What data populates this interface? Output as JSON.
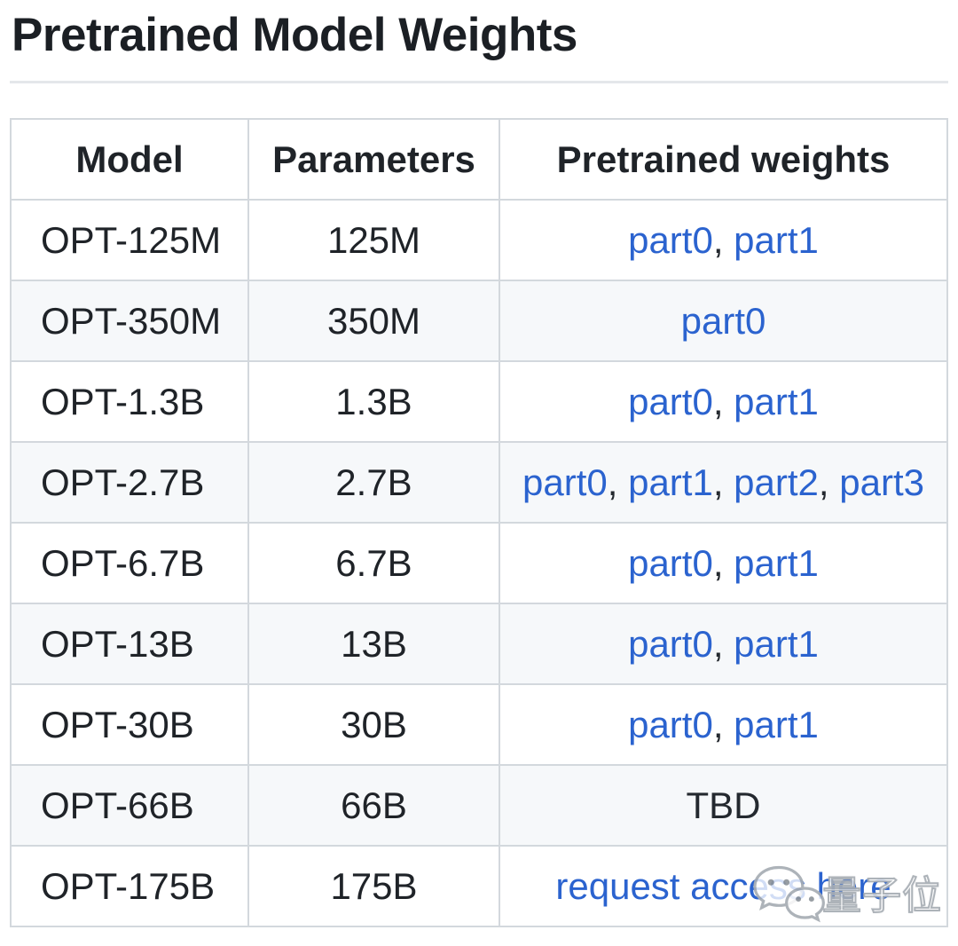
{
  "page": {
    "title": "Pretrained Model Weights"
  },
  "table": {
    "headers": [
      "Model",
      "Parameters",
      "Pretrained weights"
    ],
    "rows": [
      {
        "model": "OPT-125M",
        "parameters": "125M",
        "weights": [
          {
            "label": "part0",
            "is_link": true
          },
          {
            "label": "part1",
            "is_link": true
          }
        ]
      },
      {
        "model": "OPT-350M",
        "parameters": "350M",
        "weights": [
          {
            "label": "part0",
            "is_link": true
          }
        ]
      },
      {
        "model": "OPT-1.3B",
        "parameters": "1.3B",
        "weights": [
          {
            "label": "part0",
            "is_link": true
          },
          {
            "label": "part1",
            "is_link": true
          }
        ]
      },
      {
        "model": "OPT-2.7B",
        "parameters": "2.7B",
        "weights": [
          {
            "label": "part0",
            "is_link": true
          },
          {
            "label": "part1",
            "is_link": true
          },
          {
            "label": "part2",
            "is_link": true
          },
          {
            "label": "part3",
            "is_link": true
          }
        ]
      },
      {
        "model": "OPT-6.7B",
        "parameters": "6.7B",
        "weights": [
          {
            "label": "part0",
            "is_link": true
          },
          {
            "label": "part1",
            "is_link": true
          }
        ]
      },
      {
        "model": "OPT-13B",
        "parameters": "13B",
        "weights": [
          {
            "label": "part0",
            "is_link": true
          },
          {
            "label": "part1",
            "is_link": true
          }
        ]
      },
      {
        "model": "OPT-30B",
        "parameters": "30B",
        "weights": [
          {
            "label": "part0",
            "is_link": true
          },
          {
            "label": "part1",
            "is_link": true
          }
        ]
      },
      {
        "model": "OPT-66B",
        "parameters": "66B",
        "weights": [
          {
            "label": "TBD",
            "is_link": false
          }
        ]
      },
      {
        "model": "OPT-175B",
        "parameters": "175B",
        "weights": [
          {
            "label": "request access here",
            "is_link": true
          }
        ]
      }
    ],
    "link_separator": ", "
  },
  "watermark": {
    "text": "量子位",
    "icon": "wechat-chat-bubbles-icon"
  },
  "colors": {
    "link": "#2b63cf",
    "text": "#24292f",
    "row_stripe": "#f6f8fa",
    "border": "#d3d8dd",
    "divider": "#e4e7ea"
  }
}
